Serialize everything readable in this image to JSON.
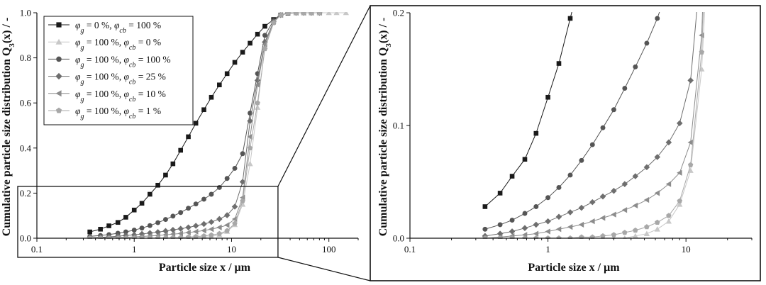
{
  "chart_data": [
    {
      "type": "line",
      "panel": "main",
      "xscale": "log",
      "xlim": [
        0.1,
        200
      ],
      "ylim": [
        0.0,
        1.0
      ],
      "xticks": [
        {
          "v": 0.1,
          "label": "0.1"
        },
        {
          "v": 1,
          "label": "1"
        },
        {
          "v": 10,
          "label": "10"
        },
        {
          "v": 100,
          "label": "100"
        }
      ],
      "yticks": [
        {
          "v": 0.0,
          "label": "0.0"
        },
        {
          "v": 0.2,
          "label": "0.2"
        },
        {
          "v": 0.4,
          "label": "0.4"
        },
        {
          "v": 0.6,
          "label": "0.6"
        },
        {
          "v": 0.8,
          "label": "0.8"
        },
        {
          "v": 1.0,
          "label": "1.0"
        }
      ],
      "xlabel": "Particle size x / µm",
      "ylabel": "Cumulative particle size distribution Q3(x) / -",
      "legend_position": "top-left",
      "series": [
        {
          "name": "φg = 0 %, φcb = 100 %",
          "phi_g": "0",
          "phi_cb": "100",
          "marker": "square",
          "color": "#1a1a1a",
          "x": [
            0.35,
            0.45,
            0.55,
            0.68,
            0.82,
            1.0,
            1.2,
            1.45,
            1.75,
            2.1,
            2.5,
            3.0,
            3.6,
            4.3,
            5.2,
            6.2,
            7.5,
            9.0,
            10.8,
            13,
            15.5,
            18.5,
            22,
            27,
            32,
            38,
            46,
            55,
            66,
            80
          ],
          "y": [
            0.028,
            0.04,
            0.055,
            0.07,
            0.093,
            0.125,
            0.155,
            0.195,
            0.235,
            0.28,
            0.33,
            0.39,
            0.45,
            0.51,
            0.57,
            0.625,
            0.68,
            0.73,
            0.78,
            0.825,
            0.865,
            0.905,
            0.94,
            0.97,
            0.99,
            0.998,
            1.0,
            1.0,
            1.0,
            1.0
          ]
        },
        {
          "name": "φg = 100 %, φcb = 0 %",
          "phi_g": "100",
          "phi_cb": "0",
          "marker": "triangle-up",
          "color": "#c8c8c8",
          "x": [
            0.35,
            0.45,
            0.55,
            0.68,
            0.82,
            1.0,
            1.2,
            1.45,
            1.75,
            2.1,
            2.5,
            3.0,
            3.6,
            4.3,
            5.2,
            6.2,
            7.5,
            9.0,
            10.8,
            13,
            15.5,
            18.5,
            22,
            27,
            32,
            38,
            46,
            55,
            66,
            80,
            100,
            120,
            150
          ],
          "y": [
            0,
            0,
            0,
            0,
            0,
            0,
            0,
            0,
            0,
            0,
            0,
            0,
            0,
            0.002,
            0.004,
            0.008,
            0.015,
            0.03,
            0.06,
            0.15,
            0.33,
            0.58,
            0.85,
            0.96,
            0.99,
            1.0,
            1.0,
            1.0,
            1.0,
            1.0,
            1.0,
            1.0,
            1.0
          ]
        },
        {
          "name": "φg = 100 %, φcb = 100 %",
          "phi_g": "100",
          "phi_cb": "100",
          "marker": "circle",
          "color": "#555555",
          "x": [
            0.35,
            0.45,
            0.55,
            0.68,
            0.82,
            1.0,
            1.2,
            1.45,
            1.75,
            2.1,
            2.5,
            3.0,
            3.6,
            4.3,
            5.2,
            6.2,
            7.5,
            9.0,
            10.8,
            13,
            15.5,
            18.5,
            22,
            27,
            32,
            38,
            46,
            55,
            66,
            80
          ],
          "y": [
            0.008,
            0.012,
            0.016,
            0.022,
            0.028,
            0.036,
            0.045,
            0.056,
            0.069,
            0.083,
            0.098,
            0.114,
            0.133,
            0.152,
            0.173,
            0.195,
            0.225,
            0.265,
            0.31,
            0.375,
            0.555,
            0.73,
            0.9,
            0.965,
            0.99,
            1.0,
            1.0,
            1.0,
            1.0,
            1.0
          ]
        },
        {
          "name": "φg = 100 %, φcb = 25 %",
          "phi_g": "100",
          "phi_cb": "25",
          "marker": "diamond",
          "color": "#6e6e6e",
          "x": [
            0.35,
            0.45,
            0.55,
            0.68,
            0.82,
            1.0,
            1.2,
            1.45,
            1.75,
            2.1,
            2.5,
            3.0,
            3.6,
            4.3,
            5.2,
            6.2,
            7.5,
            9.0,
            10.8,
            13,
            15.5,
            18.5,
            22,
            27,
            32,
            38,
            46,
            55,
            66,
            80
          ],
          "y": [
            0.002,
            0.004,
            0.006,
            0.009,
            0.012,
            0.015,
            0.019,
            0.023,
            0.027,
            0.032,
            0.037,
            0.042,
            0.048,
            0.055,
            0.063,
            0.072,
            0.085,
            0.102,
            0.14,
            0.25,
            0.52,
            0.7,
            0.87,
            0.96,
            0.99,
            1.0,
            1.0,
            1.0,
            1.0,
            1.0
          ]
        },
        {
          "name": "φg = 100 %, φcb = 10 %",
          "phi_g": "100",
          "phi_cb": "10",
          "marker": "triangle-left",
          "color": "#8c8c8c",
          "x": [
            0.35,
            0.45,
            0.55,
            0.68,
            0.82,
            1.0,
            1.2,
            1.45,
            1.75,
            2.1,
            2.5,
            3.0,
            3.6,
            4.3,
            5.2,
            6.2,
            7.5,
            9.0,
            10.8,
            13,
            15.5,
            18.5,
            22,
            27,
            32,
            38,
            46,
            55,
            66,
            80
          ],
          "y": [
            0,
            0.001,
            0.002,
            0.003,
            0.004,
            0.006,
            0.008,
            0.01,
            0.012,
            0.015,
            0.018,
            0.021,
            0.025,
            0.029,
            0.034,
            0.04,
            0.048,
            0.058,
            0.085,
            0.18,
            0.45,
            0.68,
            0.86,
            0.96,
            0.99,
            1.0,
            1.0,
            1.0,
            1.0,
            1.0
          ]
        },
        {
          "name": "φg = 100 %, φcb = 1 %",
          "phi_g": "100",
          "phi_cb": "1",
          "marker": "pentagon",
          "color": "#a8a8a8",
          "x": [
            0.35,
            0.45,
            0.55,
            0.68,
            0.82,
            1.0,
            1.2,
            1.45,
            1.75,
            2.1,
            2.5,
            3.0,
            3.6,
            4.3,
            5.2,
            6.2,
            7.5,
            9.0,
            10.8,
            13,
            15.5,
            18.5,
            22,
            27,
            32,
            38,
            46,
            55,
            66,
            80
          ],
          "y": [
            0,
            0,
            0,
            0,
            0,
            0,
            0,
            0,
            0.001,
            0.001,
            0.002,
            0.003,
            0.005,
            0.007,
            0.01,
            0.014,
            0.02,
            0.033,
            0.065,
            0.165,
            0.4,
            0.6,
            0.84,
            0.955,
            0.99,
            1.0,
            1.0,
            1.0,
            1.0,
            1.0
          ]
        }
      ]
    },
    {
      "type": "line",
      "panel": "zoom",
      "xscale": "log",
      "xlim": [
        0.1,
        30
      ],
      "ylim": [
        0.0,
        0.2
      ],
      "xticks": [
        {
          "v": 0.1,
          "label": "0.1"
        },
        {
          "v": 1,
          "label": "1"
        },
        {
          "v": 10,
          "label": "10"
        }
      ],
      "yticks": [
        {
          "v": 0.0,
          "label": "0.0"
        },
        {
          "v": 0.1,
          "label": "0.1"
        },
        {
          "v": 0.2,
          "label": "0.2"
        }
      ],
      "xlabel": "Particle size x / µm",
      "ylabel": "Cumulative particle size distribution Q3(x) / -",
      "note": "Zoomed view of the region x = 0.1–30 µm, Q3 = 0–0.2 of the main panel"
    }
  ]
}
